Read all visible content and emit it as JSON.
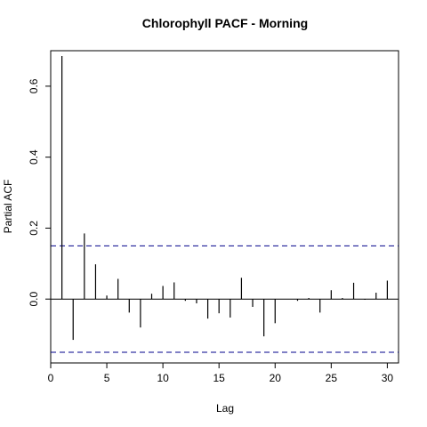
{
  "chart_data": {
    "type": "bar",
    "title": "Chlorophyll PACF - Morning",
    "xlabel": "Lag",
    "ylabel": "Partial ACF",
    "xlim": [
      0,
      31
    ],
    "ylim": [
      -0.18,
      0.7
    ],
    "x_ticks": [
      0,
      5,
      10,
      15,
      20,
      25,
      30
    ],
    "y_ticks": [
      0.0,
      0.2,
      0.4,
      0.6
    ],
    "y_tick_labels": [
      "0.0",
      "0.2",
      "0.4",
      "0.6"
    ],
    "confidence_limit": 0.15,
    "lags": [
      1,
      2,
      3,
      4,
      5,
      6,
      7,
      8,
      9,
      10,
      11,
      12,
      13,
      14,
      15,
      16,
      17,
      18,
      19,
      20,
      21,
      22,
      23,
      24,
      25,
      26,
      27,
      28,
      29,
      30
    ],
    "values": [
      0.685,
      -0.115,
      0.185,
      0.098,
      0.01,
      0.057,
      -0.038,
      -0.08,
      0.015,
      0.037,
      0.047,
      -0.005,
      -0.012,
      -0.055,
      -0.04,
      -0.052,
      0.06,
      -0.022,
      -0.105,
      -0.068,
      0.0,
      -0.005,
      0.003,
      -0.038,
      0.025,
      0.003,
      0.046,
      -0.002,
      0.018,
      0.052
    ],
    "colors": {
      "bars": "#000000",
      "confidence_lines": "#00008b",
      "zero_line": "#000000"
    }
  }
}
